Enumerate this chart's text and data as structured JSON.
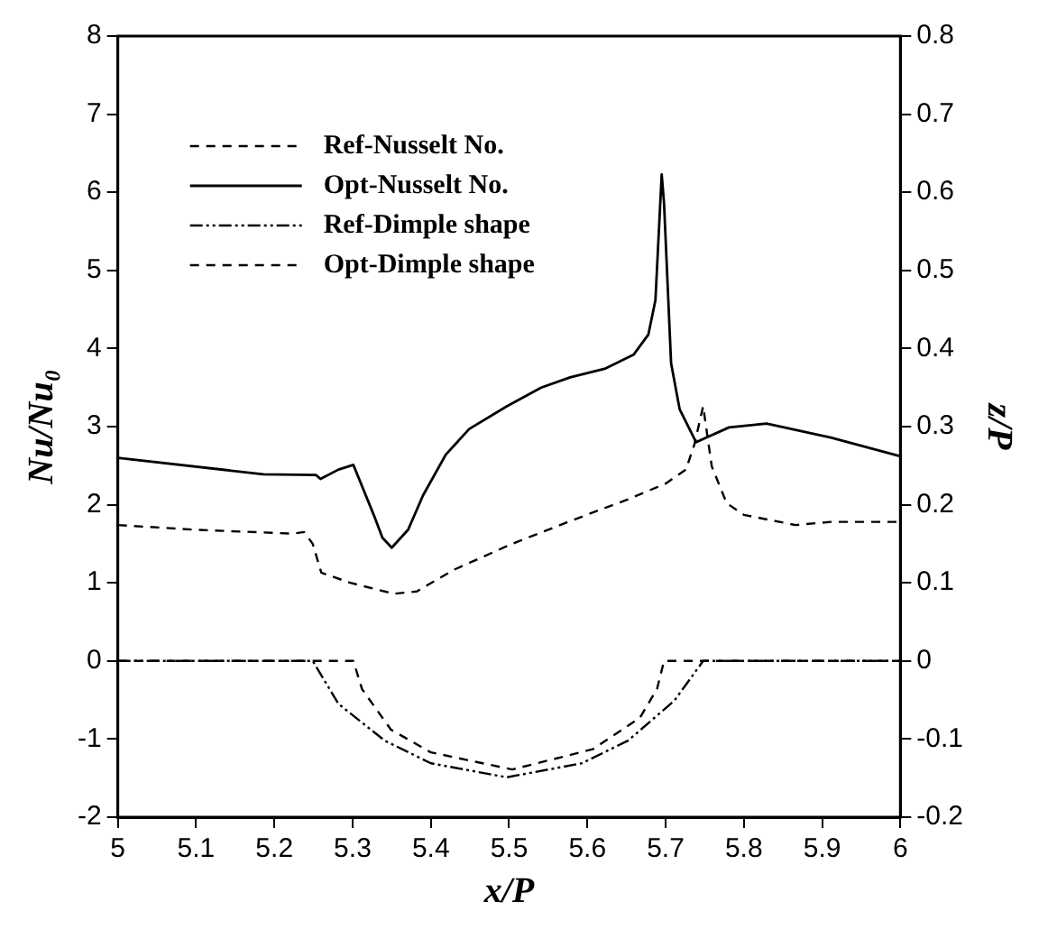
{
  "chart_data": {
    "type": "line",
    "xlabel": "x/P",
    "ylabel": "Nu/Nu₀",
    "y2label": "z/P",
    "xlim": [
      5,
      6
    ],
    "xticks": [
      5,
      5.1,
      5.2,
      5.3,
      5.4,
      5.5,
      5.6,
      5.7,
      5.8,
      5.9,
      6
    ],
    "ylim": [
      -2,
      8
    ],
    "yticks": [
      -2,
      -1,
      0,
      1,
      2,
      3,
      4,
      5,
      6,
      7,
      8
    ],
    "y2lim": [
      -0.2,
      0.8
    ],
    "y2ticks": [
      -0.2,
      -0.1,
      0,
      0.1,
      0.2,
      0.3,
      0.4,
      0.5,
      0.6,
      0.7,
      0.8
    ],
    "legend": "top left",
    "marker": "none",
    "series": [
      {
        "name": "Ref-Nusselt No.",
        "color": "#000000",
        "line_style": "dashed",
        "x": [
          5.0,
          5.098,
          5.223,
          5.238,
          5.249,
          5.26,
          5.297,
          5.353,
          5.382,
          5.43,
          5.504,
          5.578,
          5.652,
          5.7,
          5.726,
          5.737,
          5.748,
          5.759,
          5.778,
          5.8,
          5.866,
          5.911,
          6.0
        ],
        "values": [
          1.74,
          1.68,
          1.63,
          1.65,
          1.5,
          1.13,
          1.0,
          0.86,
          0.89,
          1.17,
          1.5,
          1.79,
          2.07,
          2.27,
          2.45,
          2.78,
          3.26,
          2.49,
          2.02,
          1.87,
          1.74,
          1.78,
          1.78
        ]
      },
      {
        "name": "Opt-Nusselt No.",
        "color": "#000000",
        "line_style": "solid",
        "x": [
          5.0,
          5.186,
          5.253,
          5.259,
          5.282,
          5.301,
          5.327,
          5.338,
          5.35,
          5.371,
          5.39,
          5.419,
          5.449,
          5.497,
          5.541,
          5.578,
          5.622,
          5.659,
          5.678,
          5.687,
          5.695,
          5.698,
          5.707,
          5.718,
          5.739,
          5.781,
          5.829,
          5.911,
          6.0
        ],
        "values": [
          2.6,
          2.39,
          2.38,
          2.33,
          2.45,
          2.51,
          1.87,
          1.58,
          1.45,
          1.68,
          2.12,
          2.64,
          2.97,
          3.26,
          3.5,
          3.63,
          3.74,
          3.92,
          4.18,
          4.62,
          6.23,
          5.86,
          3.81,
          3.22,
          2.8,
          2.99,
          3.04,
          2.86,
          2.62
        ]
      },
      {
        "name": "Ref-Dimple shape",
        "color": "#000000",
        "line_style": "dotted",
        "axis": "y2",
        "x": [
          5.0,
          5.249,
          5.282,
          5.341,
          5.4,
          5.497,
          5.593,
          5.652,
          5.711,
          5.748,
          6.0
        ],
        "values": [
          0,
          0,
          -0.055,
          -0.102,
          -0.131,
          -0.149,
          -0.131,
          -0.102,
          -0.051,
          0,
          0
        ]
      },
      {
        "name": "Opt-Dimple shape",
        "color": "#000000",
        "line_style": "dashed",
        "axis": "y2",
        "x": [
          5.0,
          5.301,
          5.312,
          5.349,
          5.4,
          5.504,
          5.607,
          5.667,
          5.689,
          5.698,
          6.0
        ],
        "values": [
          0,
          0,
          -0.036,
          -0.088,
          -0.117,
          -0.139,
          -0.113,
          -0.073,
          -0.036,
          0,
          0
        ]
      }
    ]
  }
}
